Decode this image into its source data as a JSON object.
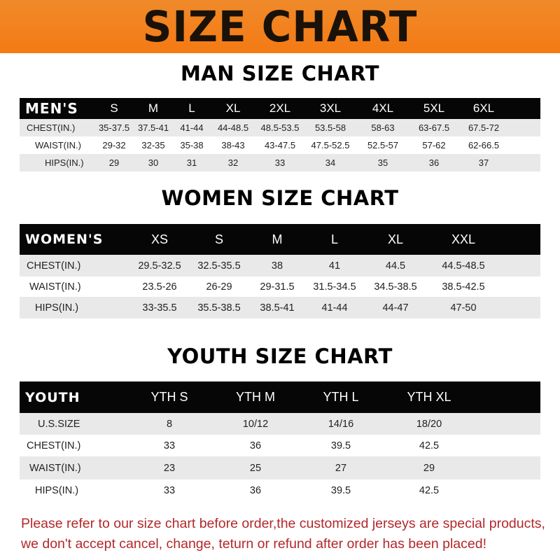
{
  "banner_title": "SIZE CHART",
  "men": {
    "title": "MAN SIZE CHART",
    "header": [
      "MEN'S",
      "S",
      "M",
      "L",
      "XL",
      "2XL",
      "3XL",
      "4XL",
      "5XL",
      "6XL"
    ],
    "rows": [
      [
        "CHEST(IN.)",
        "35-37.5",
        "37.5-41",
        "41-44",
        "44-48.5",
        "48.5-53.5",
        "53.5-58",
        "58-63",
        "63-67.5",
        "67.5-72"
      ],
      [
        "WAIST(IN.)",
        "29-32",
        "32-35",
        "35-38",
        "38-43",
        "43-47.5",
        "47.5-52.5",
        "52.5-57",
        "57-62",
        "62-66.5"
      ],
      [
        "HIPS(IN.)",
        "29",
        "30",
        "31",
        "32",
        "33",
        "34",
        "35",
        "36",
        "37"
      ]
    ]
  },
  "women": {
    "title": "WOMEN SIZE CHART",
    "header": [
      "WOMEN'S",
      "XS",
      "S",
      "M",
      "L",
      "XL",
      "XXL"
    ],
    "rows": [
      [
        "CHEST(IN.)",
        "29.5-32.5",
        "32.5-35.5",
        "38",
        "41",
        "44.5",
        "44.5-48.5"
      ],
      [
        "WAIST(IN.)",
        "23.5-26",
        "26-29",
        "29-31.5",
        "31.5-34.5",
        "34.5-38.5",
        "38.5-42.5"
      ],
      [
        "HIPS(IN.)",
        "33-35.5",
        "35.5-38.5",
        "38.5-41",
        "41-44",
        "44-47",
        "47-50"
      ]
    ]
  },
  "youth": {
    "title": "YOUTH SIZE CHART",
    "header": [
      "YOUTH",
      "YTH S",
      "YTH M",
      "YTH L",
      "YTH XL"
    ],
    "rows": [
      [
        "U.S.SIZE",
        "8",
        "10/12",
        "14/16",
        "18/20"
      ],
      [
        "CHEST(IN.)",
        "33",
        "36",
        "39.5",
        "42.5"
      ],
      [
        "WAIST(IN.)",
        "23",
        "25",
        "27",
        "29"
      ],
      [
        "HIPS(IN.)",
        "33",
        "36",
        "39.5",
        "42.5"
      ]
    ]
  },
  "notice": {
    "line1": "Please refer to our size chart before order,the customized jerseys are special products,",
    "line2": "we don't accept cancel, change, teturn or refund after order has been placed!"
  },
  "colors": {
    "banner": "#f47a14",
    "header_row": "#060606",
    "stripe": "#e9e9e9",
    "notice": "#b3282a"
  }
}
